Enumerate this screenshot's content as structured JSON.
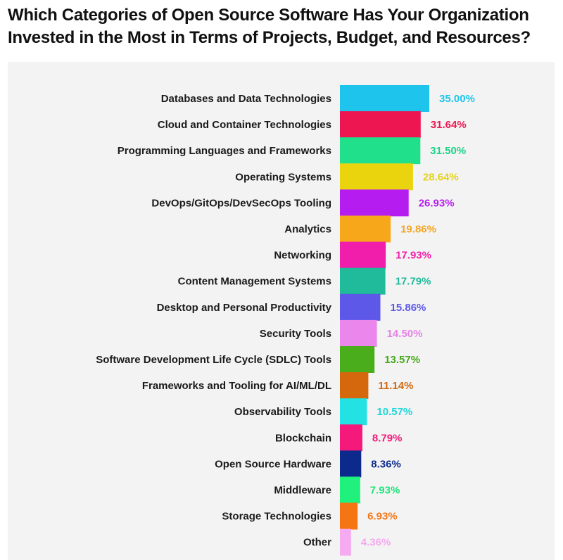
{
  "chart_data": {
    "type": "bar",
    "orientation": "horizontal",
    "title": "Which Categories of Open Source Software Has Your Organization Invested in the Most in Terms of Projects, Budget, and Resources?",
    "xlabel": "",
    "ylabel": "",
    "xlim": [
      0,
      35
    ],
    "grid": false,
    "legend": "none",
    "categories": [
      "Databases and Data Technologies",
      "Cloud and Container Technologies",
      "Programming Languages and Frameworks",
      "Operating Systems",
      "DevOps/GitOps/DevSecOps Tooling",
      "Analytics",
      "Networking",
      "Content Management Systems",
      "Desktop and Personal Productivity",
      "Security Tools",
      "Software Development Life Cycle (SDLC) Tools",
      "Frameworks and Tooling for AI/ML/DL",
      "Observability Tools",
      "Blockchain",
      "Open Source Hardware",
      "Middleware",
      "Storage Technologies",
      "Other"
    ],
    "values": [
      35.0,
      31.64,
      31.5,
      28.64,
      26.93,
      19.86,
      17.93,
      17.79,
      15.86,
      14.5,
      13.57,
      11.14,
      10.57,
      8.79,
      8.36,
      7.93,
      6.93,
      4.36
    ],
    "value_labels": [
      "35.00%",
      "31.64%",
      "31.50%",
      "28.64%",
      "26.93%",
      "19.86%",
      "17.93%",
      "17.79%",
      "15.86%",
      "14.50%",
      "13.57%",
      "11.14%",
      "10.57%",
      "8.79%",
      "8.36%",
      "7.93%",
      "6.93%",
      "4.36%"
    ],
    "colors": [
      "#1ec4ec",
      "#ee1650",
      "#20e08c",
      "#ead40e",
      "#b51cf0",
      "#f6a81a",
      "#f01eaa",
      "#1fbb9a",
      "#5d58e8",
      "#ea86ec",
      "#4aae1c",
      "#d5680c",
      "#22e2e4",
      "#f4197a",
      "#0c2a8c",
      "#20f07c",
      "#f57413",
      "#f6aaf0"
    ],
    "label_colors": [
      "#1ec4ec",
      "#ee1650",
      "#1bd487",
      "#e6d21a",
      "#b51cf0",
      "#f4a521",
      "#f01eaa",
      "#1fbb9a",
      "#5d58e8",
      "#e583e6",
      "#47a81e",
      "#cf6a12",
      "#1fd6da",
      "#f4197a",
      "#0c2a8c",
      "#1de478",
      "#f57413",
      "#f4a8ee"
    ]
  }
}
